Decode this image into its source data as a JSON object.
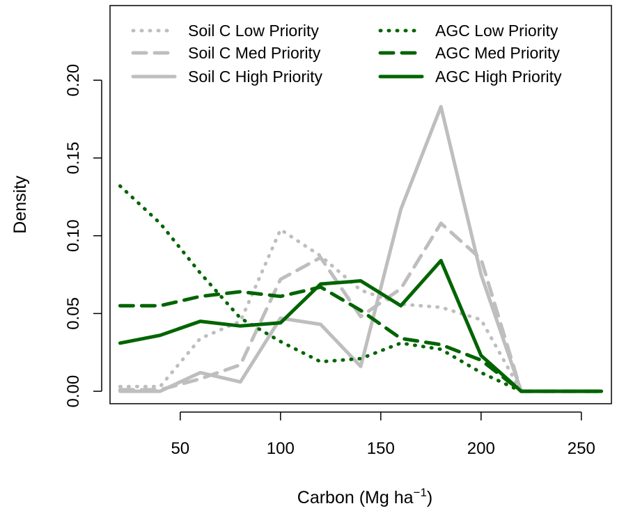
{
  "chart_data": {
    "type": "line",
    "title": "",
    "xlabel": "Carbon (Mg ha",
    "xlabel_superscript": "−1",
    "xlabel_suffix": ")",
    "ylabel": "Density",
    "xlim": [
      15,
      265
    ],
    "ylim": [
      -0.008,
      0.248
    ],
    "x_ticks": [
      50,
      100,
      150,
      200,
      250
    ],
    "x_tick_labels": [
      "50",
      "100",
      "150",
      "200",
      "250"
    ],
    "y_ticks": [
      0.0,
      0.05,
      0.1,
      0.15,
      0.2
    ],
    "y_tick_labels": [
      "0.00",
      "0.05",
      "0.10",
      "0.15",
      "0.20"
    ],
    "grid": false,
    "legend_position": "top",
    "x": [
      20,
      40,
      60,
      80,
      100,
      120,
      140,
      160,
      180,
      200,
      220,
      240,
      260
    ],
    "series": [
      {
        "name": "Soil C Low Priority",
        "color": "#bebebe",
        "style": "dotted",
        "values": [
          0.003,
          0.003,
          0.034,
          0.045,
          0.104,
          0.087,
          0.065,
          0.056,
          0.054,
          0.046,
          0.0,
          0.0,
          0.0
        ]
      },
      {
        "name": "Soil C Med Priority",
        "color": "#bebebe",
        "style": "dashed",
        "values": [
          0.001,
          0.001,
          0.008,
          0.017,
          0.072,
          0.086,
          0.048,
          0.066,
          0.108,
          0.085,
          0.0,
          0.0,
          0.0
        ]
      },
      {
        "name": "Soil C High Priority",
        "color": "#bebebe",
        "style": "solid",
        "values": [
          0.0,
          0.0,
          0.012,
          0.006,
          0.047,
          0.043,
          0.016,
          0.117,
          0.183,
          0.075,
          0.0,
          0.0,
          0.0
        ]
      },
      {
        "name": "AGC Low Priority",
        "color": "#006400",
        "style": "dotted",
        "values": [
          0.132,
          0.108,
          0.076,
          0.047,
          0.032,
          0.019,
          0.021,
          0.031,
          0.027,
          0.012,
          0.0,
          0.0,
          0.0
        ]
      },
      {
        "name": "AGC Med Priority",
        "color": "#006400",
        "style": "dashed",
        "values": [
          0.055,
          0.055,
          0.061,
          0.064,
          0.061,
          0.067,
          0.052,
          0.034,
          0.03,
          0.02,
          0.0,
          0.0,
          0.0
        ]
      },
      {
        "name": "AGC High Priority",
        "color": "#006400",
        "style": "solid",
        "values": [
          0.031,
          0.036,
          0.045,
          0.042,
          0.044,
          0.069,
          0.071,
          0.055,
          0.084,
          0.023,
          0.0,
          0.0,
          0.0
        ]
      }
    ]
  }
}
